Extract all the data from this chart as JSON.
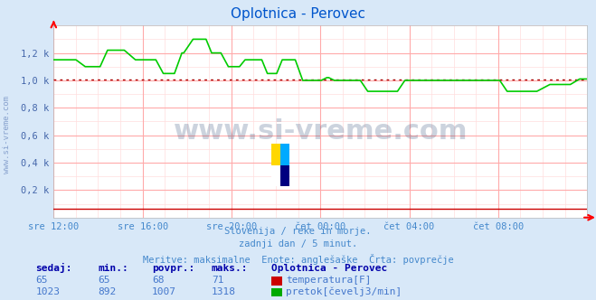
{
  "title": "Oplotnica - Perovec",
  "title_color": "#0055cc",
  "bg_color": "#d8e8f8",
  "plot_bg_color": "#ffffff",
  "grid_color_major": "#ffaaaa",
  "grid_color_minor": "#ffdddd",
  "watermark_text": "www.si-vreme.com",
  "watermark_color": "#1a3a6a",
  "watermark_alpha": 0.22,
  "xlabel_color": "#4488cc",
  "ylabel_color": "#4466aa",
  "subtitle_lines": [
    "Slovenija / reke in morje.",
    "zadnji dan / 5 minut.",
    "Meritve: maksimalne  Enote: anglešaške  Črta: povprečje"
  ],
  "subtitle_color": "#4488cc",
  "footer_header": "Oplotnica - Perovec",
  "footer_cols": [
    "sedaj:",
    "min.:",
    "povpr.:",
    "maks.:"
  ],
  "footer_data": [
    [
      65,
      65,
      68,
      71
    ],
    [
      1023,
      892,
      1007,
      1318
    ]
  ],
  "footer_colors": [
    "#cc0000",
    "#00aa00"
  ],
  "footer_labels": [
    "temperatura[F]",
    "pretok[čevelj3/min]"
  ],
  "x_tick_labels": [
    "sre 12:00",
    "sre 16:00",
    "sre 20:00",
    "čet 00:00",
    "čet 04:00",
    "čet 08:00"
  ],
  "x_tick_positions": [
    0.0,
    0.1667,
    0.3333,
    0.5,
    0.6667,
    0.8333
  ],
  "y_tick_labels": [
    "0,2 k",
    "0,4 k",
    "0,6 k",
    "0,8 k",
    "1,0 k",
    "1,2 k"
  ],
  "y_tick_values": [
    200,
    400,
    600,
    800,
    1000,
    1200
  ],
  "ylim": [
    0,
    1400
  ],
  "avg_line_value": 1007,
  "avg_line_color": "#aa0000",
  "temp_line_color": "#cc0000",
  "flow_line_color": "#00cc00",
  "n_points": 288
}
